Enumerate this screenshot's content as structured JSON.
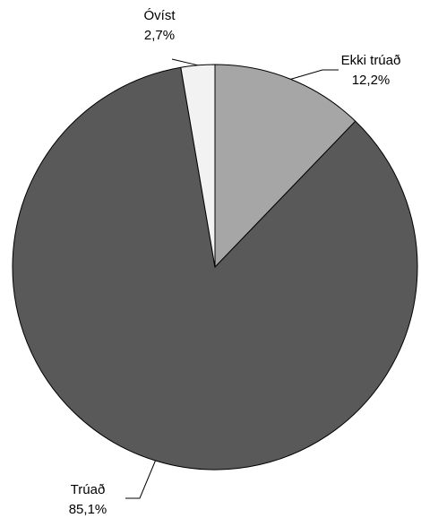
{
  "chart_data": {
    "type": "pie",
    "start_angle_deg": 0,
    "direction": "clockwise",
    "slices": [
      {
        "name": "Ekki trúað",
        "value": 12.2,
        "label": "12,2%",
        "color": "#a6a6a6"
      },
      {
        "name": "Trúað",
        "value": 85.1,
        "label": "85,1%",
        "color": "#595959"
      },
      {
        "name": "Óvíst",
        "value": 2.7,
        "label": "2,7%",
        "color": "#f2f2f2"
      }
    ]
  }
}
